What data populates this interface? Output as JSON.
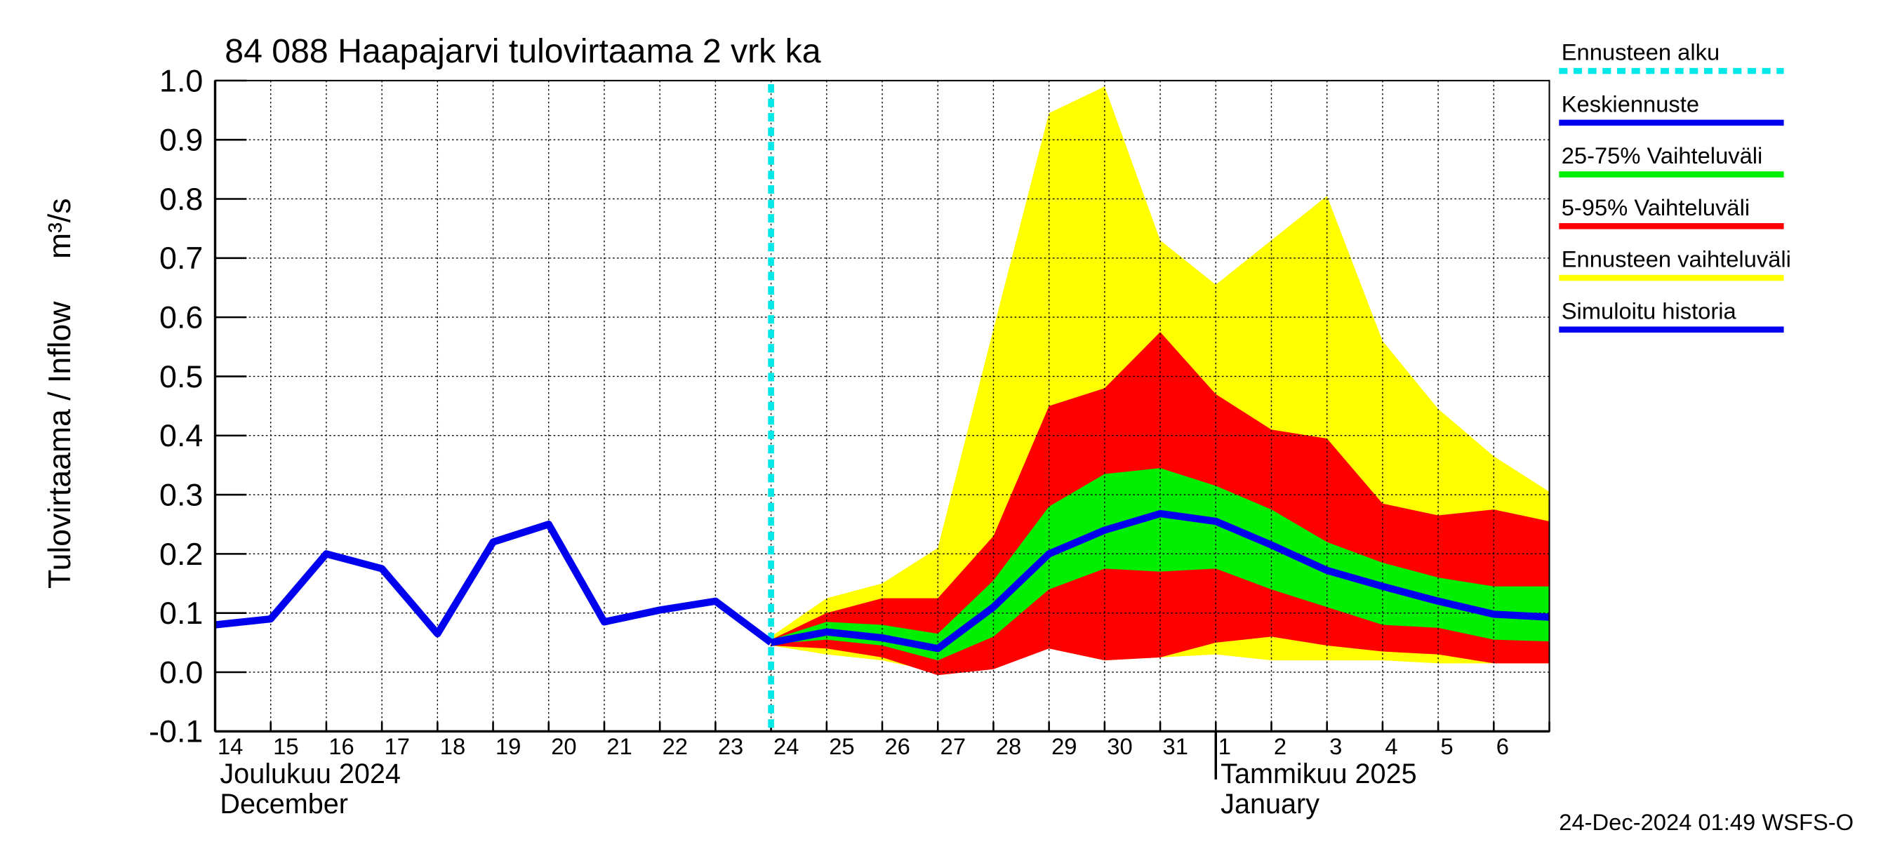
{
  "chart_data": {
    "type": "line",
    "title": "84 088 Haapajarvi tulovirtaama 2 vrk ka",
    "y_label": "Tulovirtaama / Inflow",
    "y_unit": "m³/s",
    "month_labels": [
      {
        "fi": "Joulukuu  2024",
        "en": "December",
        "at": 0
      },
      {
        "fi": "Tammikuu  2025",
        "en": "January",
        "at": 18
      }
    ],
    "footer": "24-Dec-2024 01:49 WSFS-O",
    "categories": [
      "14",
      "15",
      "16",
      "17",
      "18",
      "19",
      "20",
      "21",
      "22",
      "23",
      "24",
      "25",
      "26",
      "27",
      "28",
      "29",
      "30",
      "31",
      "1",
      "2",
      "3",
      "4",
      "5",
      "6",
      null
    ],
    "ylim": [
      -0.1,
      1.0
    ],
    "yticks": [
      -0.1,
      {
        "value": 0,
        "label": "0.0"
      },
      0.1,
      0.2,
      0.3,
      0.4,
      0.5,
      0.6,
      0.7,
      0.8,
      0.9,
      {
        "value": 1,
        "label": "1.0"
      }
    ],
    "grid": true,
    "series": [
      {
        "name": "Ennusteen alku",
        "kind": "vline",
        "color": "#00e8e8",
        "dashed": true,
        "at": 10
      },
      {
        "name": "Keskiennuste",
        "kind": "line",
        "color": "#0000ee",
        "values": [
          null,
          null,
          null,
          null,
          null,
          null,
          null,
          null,
          null,
          null,
          0.05,
          0.068,
          0.058,
          0.04,
          0.11,
          0.2,
          0.24,
          0.268,
          0.255,
          0.215,
          0.172,
          0.145,
          0.12,
          0.098,
          0.093
        ]
      },
      {
        "name": "25-75% Vaihteluväli",
        "kind": "band",
        "color": "#00ee00",
        "high": [
          null,
          null,
          null,
          null,
          null,
          null,
          null,
          null,
          null,
          null,
          0.055,
          0.085,
          0.08,
          0.065,
          0.155,
          0.28,
          0.335,
          0.345,
          0.315,
          0.275,
          0.22,
          0.185,
          0.16,
          0.145,
          0.145
        ],
        "low": [
          null,
          null,
          null,
          null,
          null,
          null,
          null,
          null,
          null,
          null,
          0.048,
          0.055,
          0.045,
          0.02,
          0.06,
          0.14,
          0.175,
          0.17,
          0.175,
          0.14,
          0.11,
          0.08,
          0.075,
          0.055,
          0.052
        ]
      },
      {
        "name": "5-95% Vaihteluväli",
        "kind": "band",
        "color": "#ff0000",
        "high": [
          null,
          null,
          null,
          null,
          null,
          null,
          null,
          null,
          null,
          null,
          0.055,
          0.1,
          0.125,
          0.125,
          0.23,
          0.45,
          0.48,
          0.575,
          0.47,
          0.41,
          0.395,
          0.285,
          0.265,
          0.275,
          0.255
        ],
        "low": [
          null,
          null,
          null,
          null,
          null,
          null,
          null,
          null,
          null,
          null,
          0.045,
          0.04,
          0.025,
          -0.005,
          0.005,
          0.04,
          0.02,
          0.025,
          0.05,
          0.06,
          0.045,
          0.035,
          0.03,
          0.015,
          0.015
        ]
      },
      {
        "name": "Ennusteen vaihteluväli",
        "kind": "band",
        "color": "#ffff00",
        "high": [
          null,
          null,
          null,
          null,
          null,
          null,
          null,
          null,
          null,
          null,
          0.06,
          0.125,
          0.15,
          0.21,
          0.58,
          0.945,
          0.99,
          0.73,
          0.655,
          0.73,
          0.805,
          0.56,
          0.445,
          0.365,
          0.305
        ],
        "low": [
          null,
          null,
          null,
          null,
          null,
          null,
          null,
          null,
          null,
          null,
          0.045,
          0.03,
          0.02,
          0.0,
          0.01,
          0.04,
          0.02,
          0.025,
          0.03,
          0.02,
          0.02,
          0.02,
          0.015,
          0.015,
          0.015
        ]
      },
      {
        "name": "Simuloitu historia",
        "kind": "line",
        "color": "#0000ee",
        "values": [
          0.08,
          0.09,
          0.2,
          0.175,
          0.065,
          0.22,
          0.25,
          0.085,
          0.105,
          0.12,
          0.05,
          null,
          null,
          null,
          null,
          null,
          null,
          null,
          null,
          null,
          null,
          null,
          null,
          null,
          null
        ]
      }
    ]
  }
}
